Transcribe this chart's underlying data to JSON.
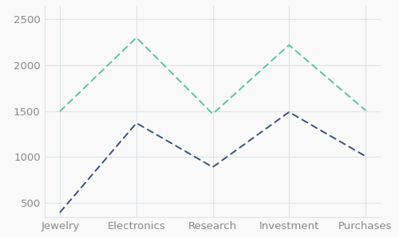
{
  "categories": [
    "Jewelry",
    "Electronics",
    "Research",
    "Investment",
    "Purchases"
  ],
  "series1": [
    1500,
    2300,
    1470,
    2220,
    1510
  ],
  "series2": [
    400,
    1370,
    890,
    1490,
    1010
  ],
  "series1_color": "#5dbfa8",
  "series2_color": "#3a5080",
  "ylim": [
    350,
    2650
  ],
  "yticks": [
    500,
    1000,
    1500,
    2000,
    2500
  ],
  "bg_color": "#f9f9f9",
  "grid_color": "#dde4ec",
  "tick_label_color": "#888888",
  "dash_pattern": [
    4,
    3
  ],
  "linewidth": 1.4,
  "tick_fontsize": 9.5
}
